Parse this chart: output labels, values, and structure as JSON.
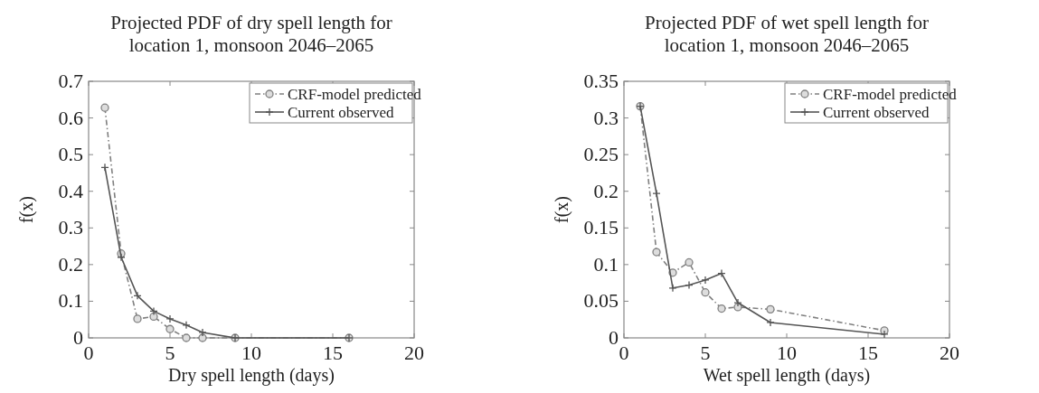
{
  "chart_data": [
    {
      "type": "line",
      "title": "Projected PDF of dry spell length for location 1, monsoon 2046–2065",
      "xlabel": "Dry spell length (days)",
      "ylabel": "f(x)",
      "xlim": [
        0,
        20
      ],
      "xticks": [
        0,
        5,
        10,
        15,
        20
      ],
      "ylim": [
        0,
        0.7
      ],
      "yticks": [
        0,
        0.1,
        0.2,
        0.3,
        0.4,
        0.5,
        0.6,
        0.7
      ],
      "legend": "top right",
      "grid": false,
      "x": [
        1,
        2,
        3,
        4,
        5,
        6,
        7,
        9,
        16
      ],
      "series": [
        {
          "name": "CRF-model predicted",
          "color": "#808080",
          "marker": "circle",
          "line_style": "dashed",
          "values": [
            0.628,
            0.23,
            0.052,
            0.058,
            0.024,
            0,
            0,
            0,
            0
          ]
        },
        {
          "name": "Current observed",
          "color": "#555555",
          "marker": "cross",
          "line_style": "solid",
          "values": [
            0.465,
            0.22,
            0.115,
            0.073,
            0.052,
            0.035,
            0.015,
            0,
            0
          ]
        }
      ]
    },
    {
      "type": "line",
      "title": "Projected PDF of wet spell length for location 1, monsoon 2046–2065",
      "xlabel": "Wet spell length (days)",
      "ylabel": "f(x)",
      "xlim": [
        0,
        20
      ],
      "xticks": [
        0,
        5,
        10,
        15,
        20
      ],
      "ylim": [
        0,
        0.35
      ],
      "yticks": [
        0,
        0.05,
        0.1,
        0.15,
        0.2,
        0.25,
        0.3,
        0.35
      ],
      "legend": "top right",
      "grid": false,
      "x": [
        1,
        2,
        3,
        4,
        5,
        6,
        7,
        9,
        16
      ],
      "series": [
        {
          "name": "CRF-model predicted",
          "color": "#808080",
          "marker": "circle",
          "line_style": "dashed",
          "values": [
            0.316,
            0.117,
            0.089,
            0.103,
            0.062,
            0.04,
            0.042,
            0.039,
            0.01
          ]
        },
        {
          "name": "Current observed",
          "color": "#555555",
          "marker": "cross",
          "line_style": "solid",
          "values": [
            0.316,
            0.197,
            0.068,
            0.072,
            0.079,
            0.088,
            0.048,
            0.021,
            0.005
          ]
        }
      ]
    }
  ]
}
